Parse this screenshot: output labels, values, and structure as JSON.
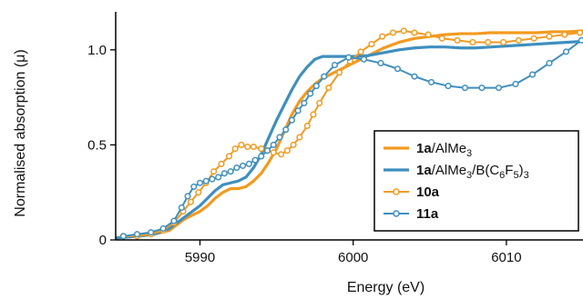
{
  "chart_data": {
    "type": "line",
    "xlabel": "Energy (eV)",
    "ylabel": "Normalised absorption (μ)",
    "xlim": [
      5984.5,
      6015
    ],
    "ylim": [
      0,
      1.2
    ],
    "xticks": [
      5990,
      6000,
      6010
    ],
    "yticks": [
      0,
      0.5,
      1.0
    ],
    "xtick_labels": [
      "5990",
      "6000",
      "6010"
    ],
    "ytick_labels": [
      "0",
      "0.5",
      "1.0"
    ],
    "grid": false,
    "legend_position": "lower-right",
    "colors": {
      "orange": "#f39a1f",
      "blue": "#3f8fbe"
    },
    "series": [
      {
        "legend": {
          "bold": "1a",
          "text": "/AlMe",
          "sub": "3",
          "rest": ""
        },
        "color": "#f39a1f",
        "style": "line",
        "marker": false,
        "x": [
          5984.5,
          5986,
          5987,
          5988,
          5988.5,
          5989,
          5989.5,
          5990,
          5990.5,
          5991,
          5991.5,
          5992,
          5992.5,
          5993,
          5993.5,
          5994,
          5994.5,
          5995,
          5995.5,
          5996,
          5996.5,
          5997,
          5997.5,
          5998,
          5998.5,
          5999,
          5999.5,
          6000,
          6001,
          6002,
          6003,
          6004,
          6005,
          6006,
          6007,
          6008,
          6009,
          6010,
          6011,
          6012,
          6013,
          6014,
          6015
        ],
        "y": [
          0.01,
          0.02,
          0.03,
          0.05,
          0.08,
          0.11,
          0.13,
          0.15,
          0.18,
          0.22,
          0.25,
          0.27,
          0.27,
          0.28,
          0.31,
          0.35,
          0.41,
          0.48,
          0.57,
          0.66,
          0.73,
          0.78,
          0.82,
          0.85,
          0.87,
          0.89,
          0.91,
          0.93,
          0.97,
          1.01,
          1.04,
          1.06,
          1.07,
          1.08,
          1.085,
          1.085,
          1.09,
          1.09,
          1.09,
          1.09,
          1.095,
          1.095,
          1.1
        ]
      },
      {
        "legend": {
          "bold": "1a",
          "text": "/AlMe",
          "sub": "3",
          "rest": "/B(C",
          "sub2": "6",
          "rest2": "F",
          "sub3": "5",
          "rest3": ")",
          "sub4": "3"
        },
        "color": "#3f8fbe",
        "style": "line",
        "marker": false,
        "x": [
          5984.5,
          5986,
          5987,
          5988,
          5988.5,
          5989,
          5989.5,
          5990,
          5990.5,
          5991,
          5991.5,
          5992,
          5992.5,
          5993,
          5993.5,
          5994,
          5994.5,
          5995,
          5995.5,
          5996,
          5996.5,
          5997,
          5997.5,
          5998,
          5998.5,
          5999,
          6000,
          6001,
          6002,
          6003,
          6004,
          6005,
          6006,
          6007,
          6008,
          6009,
          6010,
          6011,
          6012,
          6013,
          6014,
          6015
        ],
        "y": [
          0.01,
          0.02,
          0.03,
          0.06,
          0.09,
          0.12,
          0.15,
          0.18,
          0.22,
          0.26,
          0.29,
          0.3,
          0.31,
          0.33,
          0.38,
          0.45,
          0.54,
          0.63,
          0.71,
          0.79,
          0.86,
          0.91,
          0.95,
          0.965,
          0.965,
          0.965,
          0.965,
          0.97,
          0.985,
          1.0,
          1.01,
          1.015,
          1.015,
          1.01,
          1.01,
          1.015,
          1.02,
          1.025,
          1.03,
          1.035,
          1.04,
          1.045
        ]
      },
      {
        "legend": {
          "bold": "10a",
          "text": "",
          "sub": "",
          "rest": ""
        },
        "color": "#f39a1f",
        "style": "line-marker",
        "marker": true,
        "x": [
          5985,
          5985.9,
          5986.8,
          5987.6,
          5988.3,
          5988.9,
          5989.4,
          5989.9,
          5990.4,
          5990.9,
          5991.4,
          5991.9,
          5992.3,
          5992.7,
          5993.1,
          5993.5,
          5994,
          5994.4,
          5994.8,
          5995.3,
          5995.7,
          5996.1,
          5996.5,
          5997,
          5997.4,
          5997.8,
          5998.4,
          5999.1,
          5999.8,
          6000.5,
          6001.2,
          6001.9,
          6002.6,
          6003.3,
          6004,
          6004.9,
          6005.8,
          6006.8,
          6007.8,
          6008.8,
          6009.8,
          6010.8,
          6011.8,
          6012.8,
          6013.8,
          6014.8
        ],
        "y": [
          0.02,
          0.02,
          0.03,
          0.05,
          0.09,
          0.15,
          0.2,
          0.25,
          0.3,
          0.36,
          0.4,
          0.44,
          0.48,
          0.5,
          0.49,
          0.49,
          0.48,
          0.47,
          0.46,
          0.45,
          0.47,
          0.5,
          0.54,
          0.6,
          0.66,
          0.72,
          0.8,
          0.88,
          0.94,
          0.99,
          1.03,
          1.07,
          1.09,
          1.1,
          1.09,
          1.08,
          1.06,
          1.05,
          1.04,
          1.04,
          1.04,
          1.05,
          1.06,
          1.07,
          1.08,
          1.09
        ]
      },
      {
        "legend": {
          "bold": "11a",
          "text": "",
          "sub": "",
          "rest": ""
        },
        "color": "#3f8fbe",
        "style": "line-marker",
        "marker": true,
        "x": [
          5985,
          5985.9,
          5986.8,
          5987.6,
          5988.3,
          5988.8,
          5989.2,
          5989.6,
          5990,
          5990.4,
          5990.8,
          5991.2,
          5991.6,
          5992,
          5992.4,
          5992.8,
          5993.2,
          5993.6,
          5994,
          5994.4,
          5994.8,
          5995.2,
          5995.6,
          5996,
          5996.4,
          5996.8,
          5997.2,
          5997.6,
          5998.1,
          5998.8,
          5999.7,
          6000.7,
          6001.8,
          6002.9,
          6004,
          6005.1,
          6006.2,
          6007.3,
          6008.4,
          6009.5,
          6010.6,
          6011.7,
          6012.8,
          6013.9,
          6014.9
        ],
        "y": [
          0.02,
          0.03,
          0.04,
          0.06,
          0.1,
          0.17,
          0.23,
          0.28,
          0.3,
          0.31,
          0.32,
          0.33,
          0.35,
          0.36,
          0.38,
          0.39,
          0.4,
          0.42,
          0.44,
          0.47,
          0.5,
          0.54,
          0.58,
          0.63,
          0.68,
          0.72,
          0.77,
          0.81,
          0.86,
          0.92,
          0.96,
          0.95,
          0.93,
          0.9,
          0.86,
          0.83,
          0.81,
          0.8,
          0.8,
          0.8,
          0.82,
          0.87,
          0.93,
          0.99,
          1.05
        ]
      }
    ]
  }
}
